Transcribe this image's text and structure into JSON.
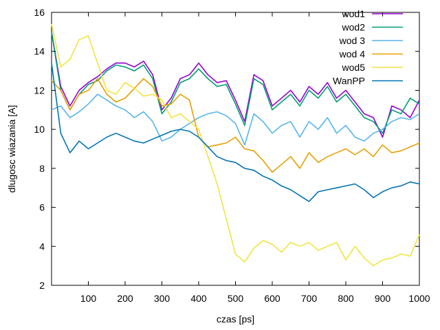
{
  "chart_data": {
    "type": "line",
    "title": "",
    "xlabel": "czas [ps]",
    "ylabel": "dlugosc wiazania [A]",
    "xlim": [
      0,
      1000
    ],
    "ylim": [
      2,
      16
    ],
    "xticks": [
      100,
      200,
      300,
      400,
      500,
      600,
      700,
      800,
      900,
      1000
    ],
    "yticks": [
      2,
      4,
      6,
      8,
      10,
      12,
      14,
      16
    ],
    "grid": false,
    "legend_position": "top-right",
    "x": [
      0,
      25,
      50,
      75,
      100,
      125,
      150,
      175,
      200,
      225,
      250,
      275,
      300,
      325,
      350,
      375,
      400,
      425,
      450,
      475,
      500,
      525,
      550,
      575,
      600,
      625,
      650,
      675,
      700,
      725,
      750,
      775,
      800,
      825,
      850,
      875,
      900,
      925,
      950,
      975,
      1000
    ],
    "series": [
      {
        "name": "wod1",
        "color": "#9400d3",
        "values": [
          15.0,
          12.2,
          11.2,
          12.0,
          12.4,
          12.7,
          13.1,
          13.4,
          13.4,
          13.2,
          13.5,
          12.8,
          11.0,
          11.6,
          12.6,
          12.8,
          13.4,
          12.8,
          12.4,
          12.5,
          11.5,
          10.4,
          12.8,
          12.5,
          11.2,
          11.6,
          12.0,
          11.4,
          12.2,
          11.8,
          12.4,
          11.6,
          12.0,
          11.4,
          10.8,
          10.6,
          9.6,
          11.2,
          11.0,
          10.6,
          11.5
        ]
      },
      {
        "name": "wod2",
        "color": "#009e73",
        "values": [
          15.0,
          12.0,
          11.0,
          11.8,
          12.3,
          12.5,
          13.0,
          13.3,
          13.2,
          13.0,
          13.3,
          12.6,
          10.8,
          11.4,
          12.4,
          12.6,
          13.1,
          12.6,
          12.2,
          12.3,
          11.3,
          10.2,
          12.6,
          12.3,
          11.0,
          11.4,
          11.8,
          11.2,
          12.0,
          11.6,
          12.2,
          11.4,
          11.8,
          11.2,
          10.6,
          10.4,
          9.8,
          11.0,
          10.8,
          11.6,
          11.3
        ]
      },
      {
        "name": "wod 3",
        "color": "#56b4e9",
        "values": [
          11.0,
          11.2,
          10.6,
          10.9,
          11.3,
          11.8,
          11.5,
          11.2,
          11.0,
          10.6,
          10.9,
          10.4,
          9.4,
          9.6,
          10.0,
          10.3,
          10.6,
          10.8,
          10.9,
          10.7,
          10.3,
          9.2,
          10.8,
          10.4,
          9.8,
          10.2,
          10.4,
          9.6,
          10.4,
          10.0,
          10.6,
          9.8,
          10.2,
          9.6,
          9.4,
          9.8,
          10.0,
          10.4,
          10.6,
          10.5,
          10.8
        ]
      },
      {
        "name": "wod 4",
        "color": "#e69f00",
        "values": [
          12.5,
          12.0,
          11.0,
          11.8,
          12.0,
          12.6,
          11.8,
          11.4,
          11.6,
          12.1,
          12.6,
          12.2,
          11.2,
          11.3,
          11.8,
          11.5,
          9.6,
          9.1,
          9.2,
          9.3,
          9.6,
          9.0,
          8.9,
          8.4,
          7.8,
          8.2,
          8.6,
          8.0,
          8.8,
          8.3,
          8.6,
          8.8,
          9.0,
          8.7,
          9.0,
          8.6,
          9.2,
          8.8,
          8.9,
          9.1,
          9.3
        ]
      },
      {
        "name": "wod5",
        "color": "#f0e442",
        "values": [
          15.4,
          13.2,
          13.6,
          14.6,
          14.8,
          13.4,
          12.0,
          11.8,
          12.4,
          12.1,
          11.7,
          11.8,
          11.5,
          10.6,
          10.8,
          10.4,
          10.0,
          8.6,
          7.2,
          5.4,
          3.6,
          3.2,
          3.9,
          4.3,
          4.1,
          3.7,
          4.2,
          4.0,
          4.2,
          3.8,
          4.0,
          4.2,
          3.3,
          4.0,
          3.4,
          3.0,
          3.3,
          3.4,
          3.6,
          3.5,
          4.6
        ]
      },
      {
        "name": "WanPP",
        "color": "#0072b2",
        "values": [
          13.4,
          9.8,
          8.8,
          9.4,
          9.0,
          9.3,
          9.6,
          9.8,
          9.6,
          9.4,
          9.3,
          9.5,
          9.7,
          9.9,
          10.0,
          9.9,
          9.6,
          9.1,
          8.6,
          8.4,
          8.3,
          8.0,
          7.9,
          7.6,
          7.4,
          7.1,
          6.9,
          6.6,
          6.3,
          6.8,
          6.9,
          7.0,
          7.1,
          7.2,
          6.9,
          6.5,
          6.8,
          7.0,
          7.1,
          7.3,
          7.2
        ]
      }
    ]
  }
}
